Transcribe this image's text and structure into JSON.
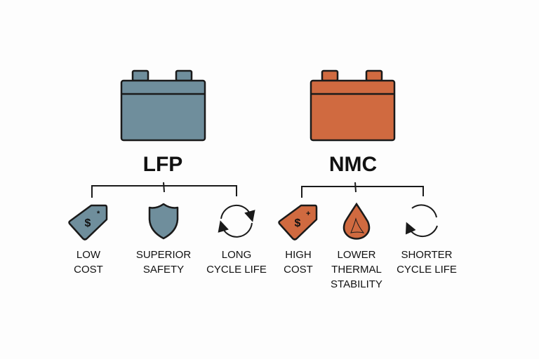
{
  "colors": {
    "lfp": "#6f8e9c",
    "nmc": "#d06a40",
    "stroke": "#1a1a1a"
  },
  "lfp": {
    "title": "LFP",
    "items": [
      {
        "label": "LOW\nCOST",
        "icon": "price-tag-icon"
      },
      {
        "label": "SUPERIOR\nSAFETY",
        "icon": "shield-icon"
      },
      {
        "label": "LONG\nCYCLE LIFE",
        "icon": "cycle-arrows-icon"
      }
    ]
  },
  "nmc": {
    "title": "NMC",
    "items": [
      {
        "label": "HIGH\nCOST",
        "icon": "price-tag-icon"
      },
      {
        "label": "LOWER\nTHERMAL\nSTABILITY",
        "icon": "flame-drop-icon"
      },
      {
        "label": "SHORTER\nCYCLE LIFE",
        "icon": "partial-cycle-arrow-icon"
      }
    ]
  },
  "tag_symbol": "$"
}
